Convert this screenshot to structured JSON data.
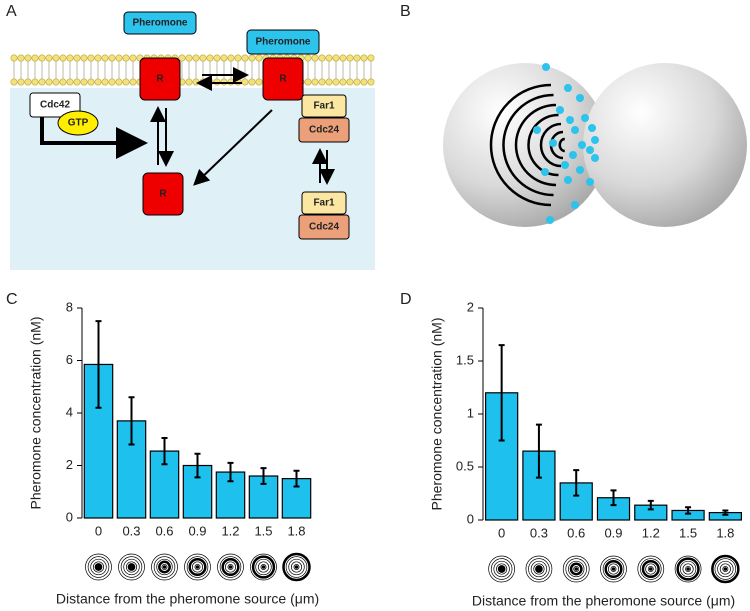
{
  "panels": [
    "A",
    "B",
    "C",
    "D"
  ],
  "diagram": {
    "pheromone_1": "Pheromone",
    "pheromone_2": "Pheromone",
    "receptor_1": "R",
    "receptor_2": "R",
    "receptor_3": "R",
    "cdc42": "Cdc42",
    "gtp": "GTP",
    "far1_1": "Far1",
    "cdc24_1": "Cdc24",
    "far1_2": "Far1",
    "cdc24_2": "Cdc24"
  },
  "chart_data": [
    {
      "type": "bar",
      "x_label": "Distance from the pheromone source (μm)",
      "y_label": "Pheromone concentration (nM)",
      "categories": [
        "0",
        "0.3",
        "0.6",
        "0.9",
        "1.2",
        "1.5",
        "1.8"
      ],
      "values": [
        5.85,
        3.7,
        2.55,
        2.0,
        1.75,
        1.6,
        1.5
      ],
      "errors": [
        1.65,
        0.9,
        0.5,
        0.45,
        0.35,
        0.3,
        0.3
      ],
      "color": "#1ec0ee",
      "ylim": [
        0,
        8
      ],
      "yticks": [
        0,
        2,
        4,
        6,
        8
      ]
    },
    {
      "type": "bar",
      "x_label": "Distance from the pheromone source (μm)",
      "y_label": "Pheromone concentration (nM)",
      "categories": [
        "0",
        "0.3",
        "0.6",
        "0.9",
        "1.2",
        "1.5",
        "1.8"
      ],
      "values": [
        1.2,
        0.65,
        0.35,
        0.21,
        0.14,
        0.09,
        0.07
      ],
      "errors": [
        0.45,
        0.25,
        0.12,
        0.07,
        0.04,
        0.03,
        0.02
      ],
      "color": "#1ec0ee",
      "ylim": [
        0,
        2
      ],
      "yticks": [
        0,
        0.5,
        1,
        1.5,
        2
      ]
    }
  ]
}
